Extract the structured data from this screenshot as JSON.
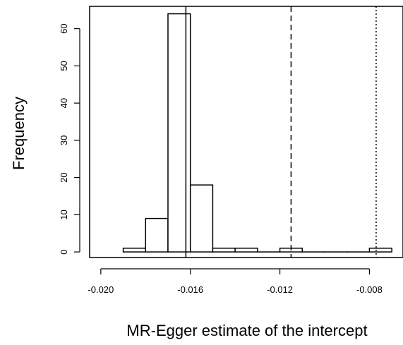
{
  "chart_data": {
    "type": "histogram",
    "xlabel": "MR-Egger estimate of the intercept",
    "ylabel": "Frequency",
    "bin_width": 0.001,
    "bins": [
      {
        "x0": -0.019,
        "x1": -0.018,
        "count": 1
      },
      {
        "x0": -0.018,
        "x1": -0.017,
        "count": 9
      },
      {
        "x0": -0.017,
        "x1": -0.016,
        "count": 64
      },
      {
        "x0": -0.016,
        "x1": -0.015,
        "count": 18
      },
      {
        "x0": -0.015,
        "x1": -0.014,
        "count": 1
      },
      {
        "x0": -0.014,
        "x1": -0.013,
        "count": 1
      },
      {
        "x0": -0.013,
        "x1": -0.012,
        "count": 0
      },
      {
        "x0": -0.012,
        "x1": -0.011,
        "count": 1
      },
      {
        "x0": -0.011,
        "x1": -0.01,
        "count": 0
      },
      {
        "x0": -0.01,
        "x1": -0.009,
        "count": 0
      },
      {
        "x0": -0.009,
        "x1": -0.008,
        "count": 0
      },
      {
        "x0": -0.008,
        "x1": -0.007,
        "count": 1
      }
    ],
    "x_ticks": [
      -0.02,
      -0.016,
      -0.012,
      -0.008
    ],
    "x_tick_labels": [
      "-0.020",
      "-0.016",
      "-0.012",
      "-0.008"
    ],
    "y_ticks": [
      0,
      10,
      20,
      30,
      40,
      50,
      60
    ],
    "y_tick_labels": [
      "0",
      "10",
      "20",
      "30",
      "40",
      "50",
      "60"
    ],
    "xlim": [
      -0.0205,
      -0.0065
    ],
    "ylim": [
      -1.5,
      66
    ],
    "reference_lines": [
      {
        "x": -0.0162,
        "style": "solid"
      },
      {
        "x": -0.0115,
        "style": "dashed"
      },
      {
        "x": -0.0077,
        "style": "dotted"
      }
    ],
    "grid": false,
    "legend": "none"
  }
}
